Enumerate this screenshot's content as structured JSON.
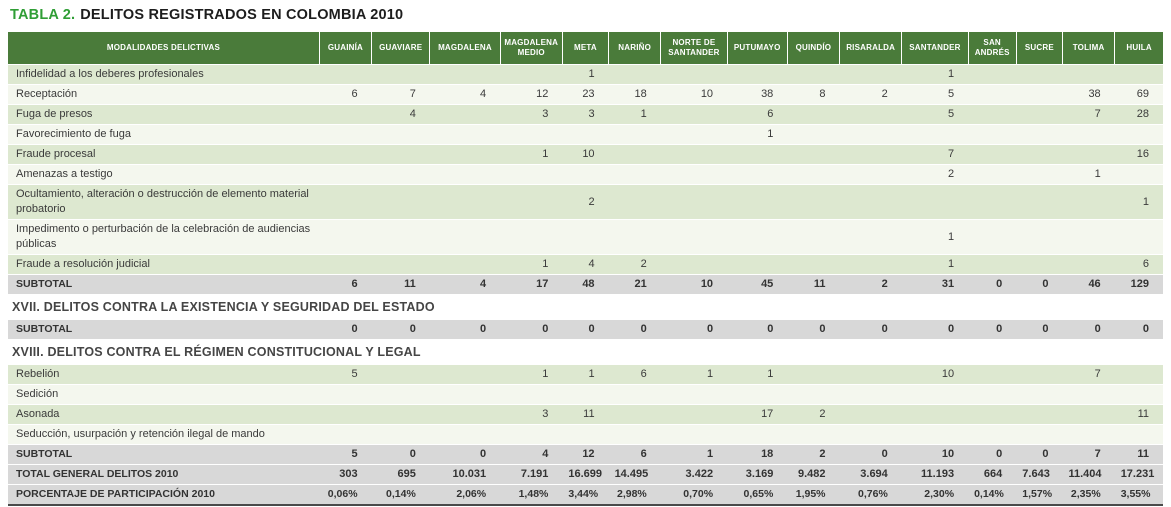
{
  "title": {
    "prefix": "TABLA 2.",
    "text": "DELITOS REGISTRADOS EN COLOMBIA 2010"
  },
  "colors": {
    "title_green": "#2f9e35",
    "header_green": "#4a7b3a",
    "stripe_green": "#dde8d0",
    "stripe_light": "#f4f7ee",
    "subtotal_gray": "#d8d8d8",
    "border_dark": "#4a4a4a"
  },
  "table": {
    "first_header": "MODALIDADES DELICTIVAS",
    "columns": [
      "GUAINÍA",
      "GUAVIARE",
      "MAGDALENA",
      "MAGDALENA MEDIO",
      "META",
      "NARIÑO",
      "NORTE DE SANTANDER",
      "PUTUMAYO",
      "QUINDÍO",
      "RISARALDA",
      "SANTANDER",
      "SAN ANDRÉS",
      "SUCRE",
      "TOLIMA",
      "HUILA"
    ],
    "rows": [
      {
        "type": "data",
        "label": "Infidelidad a los deberes profesionales",
        "values": [
          "",
          "",
          "",
          "",
          "1",
          "",
          "",
          "",
          "",
          "",
          "1",
          "",
          "",
          "",
          ""
        ]
      },
      {
        "type": "data",
        "label": "Receptación",
        "values": [
          "6",
          "7",
          "4",
          "12",
          "23",
          "18",
          "10",
          "38",
          "8",
          "2",
          "5",
          "",
          "",
          "38",
          "69"
        ]
      },
      {
        "type": "data",
        "label": "Fuga de presos",
        "values": [
          "",
          "4",
          "",
          "3",
          "3",
          "1",
          "",
          "6",
          "",
          "",
          "5",
          "",
          "",
          "7",
          "28"
        ]
      },
      {
        "type": "data",
        "label": "Favorecimiento de fuga",
        "values": [
          "",
          "",
          "",
          "",
          "",
          "",
          "",
          "1",
          "",
          "",
          "",
          "",
          "",
          "",
          ""
        ]
      },
      {
        "type": "data",
        "label": "Fraude procesal",
        "values": [
          "",
          "",
          "",
          "1",
          "10",
          "",
          "",
          "",
          "",
          "",
          "7",
          "",
          "",
          "",
          "16"
        ]
      },
      {
        "type": "data",
        "label": "Amenazas a testigo",
        "values": [
          "",
          "",
          "",
          "",
          "",
          "",
          "",
          "",
          "",
          "",
          "2",
          "",
          "",
          "1",
          ""
        ]
      },
      {
        "type": "data",
        "label": "Ocultamiento, alteración o destrucción de elemento material probatorio",
        "values": [
          "",
          "",
          "",
          "",
          "2",
          "",
          "",
          "",
          "",
          "",
          "",
          "",
          "",
          "",
          "1"
        ]
      },
      {
        "type": "data",
        "label": "Impedimento o perturbación de la celebración de audiencias públicas",
        "values": [
          "",
          "",
          "",
          "",
          "",
          "",
          "",
          "",
          "",
          "",
          "1",
          "",
          "",
          "",
          ""
        ]
      },
      {
        "type": "data",
        "label": "Fraude a resolución judicial",
        "values": [
          "",
          "",
          "",
          "1",
          "4",
          "2",
          "",
          "",
          "",
          "",
          "1",
          "",
          "",
          "",
          "6"
        ]
      },
      {
        "type": "subtotal",
        "label": "SUBTOTAL",
        "values": [
          "6",
          "11",
          "4",
          "17",
          "48",
          "21",
          "10",
          "45",
          "11",
          "2",
          "31",
          "0",
          "0",
          "46",
          "129"
        ]
      },
      {
        "type": "section",
        "label": "XVII. DELITOS CONTRA LA EXISTENCIA Y SEGURIDAD DEL ESTADO"
      },
      {
        "type": "subtotal",
        "label": "SUBTOTAL",
        "values": [
          "0",
          "0",
          "0",
          "0",
          "0",
          "0",
          "0",
          "0",
          "0",
          "0",
          "0",
          "0",
          "0",
          "0",
          "0"
        ]
      },
      {
        "type": "section",
        "label": "XVIII. DELITOS CONTRA EL RÉGIMEN CONSTITUCIONAL Y LEGAL"
      },
      {
        "type": "data",
        "label": "Rebelión",
        "values": [
          "5",
          "",
          "",
          "1",
          "1",
          "6",
          "1",
          "1",
          "",
          "",
          "10",
          "",
          "",
          "7",
          ""
        ]
      },
      {
        "type": "data",
        "label": "Sedición",
        "values": [
          "",
          "",
          "",
          "",
          "",
          "",
          "",
          "",
          "",
          "",
          "",
          "",
          "",
          "",
          ""
        ]
      },
      {
        "type": "data",
        "label": "Asonada",
        "values": [
          "",
          "",
          "",
          "3",
          "11",
          "",
          "",
          "17",
          "2",
          "",
          "",
          "",
          "",
          "",
          "11"
        ]
      },
      {
        "type": "data",
        "label": "Seducción, usurpación y retención ilegal de mando",
        "values": [
          "",
          "",
          "",
          "",
          "",
          "",
          "",
          "",
          "",
          "",
          "",
          "",
          "",
          "",
          ""
        ]
      },
      {
        "type": "subtotal",
        "label": "SUBTOTAL",
        "values": [
          "5",
          "0",
          "0",
          "4",
          "12",
          "6",
          "1",
          "18",
          "2",
          "0",
          "10",
          "0",
          "0",
          "7",
          "11"
        ]
      },
      {
        "type": "total",
        "label": "TOTAL GENERAL DELITOS 2010",
        "values": [
          "303",
          "695",
          "10.031",
          "7.191",
          "16.699",
          "14.495",
          "3.422",
          "3.169",
          "9.482",
          "3.694",
          "11.193",
          "664",
          "7.643",
          "11.404",
          "17.231"
        ]
      },
      {
        "type": "percent",
        "label": "PORCENTAJE DE PARTICIPACIÓN 2010",
        "values": [
          "0,06%",
          "0,14%",
          "2,06%",
          "1,48%",
          "3,44%",
          "2,98%",
          "0,70%",
          "0,65%",
          "1,95%",
          "0,76%",
          "2,30%",
          "0,14%",
          "1,57%",
          "2,35%",
          "3,55%"
        ]
      }
    ]
  }
}
